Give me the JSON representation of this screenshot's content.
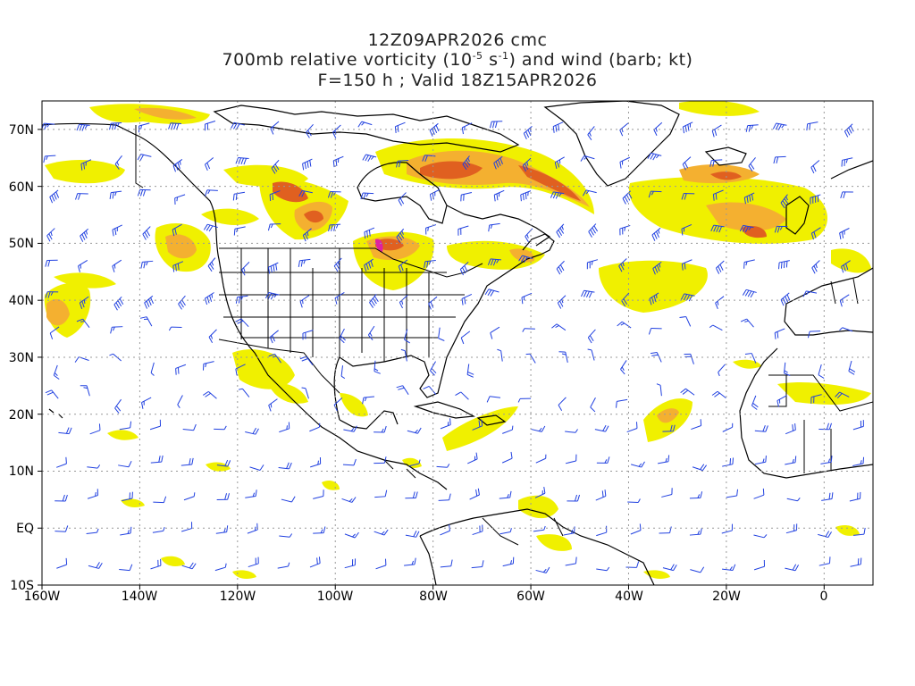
{
  "title": {
    "line1": "12Z09APR2026 cmc",
    "line2_prefix": "700mb relative vorticity (10",
    "line2_exp1": "-5",
    "line2_mid": " s",
    "line2_exp2": "-1",
    "line2_suffix": ") and wind (barb; kt)",
    "line3": "F=150 h ; Valid 18Z15APR2026"
  },
  "axes": {
    "lon_labels": [
      "160W",
      "140W",
      "120W",
      "100W",
      "80W",
      "60W",
      "40W",
      "20W",
      "0"
    ],
    "lat_labels": [
      "70N",
      "60N",
      "50N",
      "40N",
      "30N",
      "20N",
      "10N",
      "EQ",
      "10S"
    ],
    "lon_range": [
      -160,
      10
    ],
    "lat_range": [
      -10,
      75
    ],
    "grid": "dotted"
  },
  "colors": {
    "shade_light": "#f0f000",
    "shade_yellow": "#f4e000",
    "shade_orange": "#f4b030",
    "shade_deep": "#e06020",
    "shade_red": "#d03010",
    "shade_magenta": "#e020a0",
    "barb": "#2040e0",
    "coast": "#000000",
    "grid": "#999999"
  }
}
